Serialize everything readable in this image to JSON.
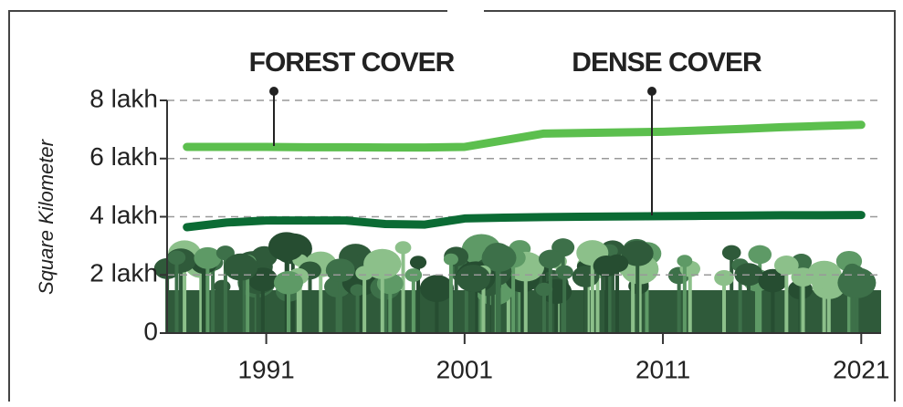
{
  "chart_data": {
    "type": "line",
    "y_label": "Square Kilometer",
    "annotations": [
      "FOREST COVER",
      "DENSE COVER"
    ],
    "x": [
      1987,
      1989,
      1991,
      1993,
      1995,
      1997,
      1999,
      2001,
      2003,
      2005,
      2011,
      2013,
      2015,
      2017,
      2019,
      2021
    ],
    "series": [
      {
        "name": "FOREST COVER",
        "color": "#5cbf4e",
        "values": [
          6.4,
          6.4,
          6.4,
          6.39,
          6.39,
          6.38,
          6.38,
          6.4,
          6.63,
          6.86,
          6.92,
          6.97,
          7.02,
          7.08,
          7.12,
          7.16
        ]
      },
      {
        "name": "DENSE COVER",
        "color": "#0b6b34",
        "values": [
          3.64,
          3.8,
          3.87,
          3.87,
          3.87,
          3.75,
          3.73,
          3.94,
          3.97,
          3.99,
          4.02,
          4.03,
          4.04,
          4.05,
          4.05,
          4.06
        ]
      }
    ],
    "xlim": [
      1986,
      2022
    ],
    "xticks": [
      1991,
      2001,
      2011,
      2021
    ],
    "ylim": [
      0,
      8
    ],
    "yticks": [
      0,
      {
        "value": 2,
        "label": "2 lakh"
      },
      {
        "value": 4,
        "label": "4 lakh"
      },
      {
        "value": 6,
        "label": "6 lakh"
      },
      {
        "value": 8,
        "label": "8 lakh"
      }
    ],
    "grid": true
  }
}
